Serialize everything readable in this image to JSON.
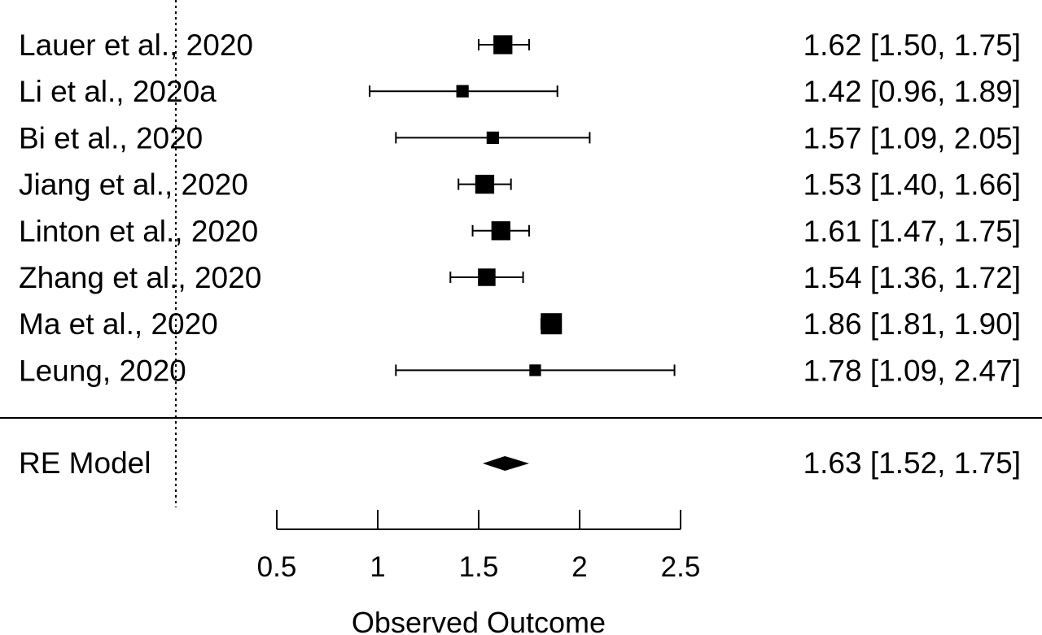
{
  "chart_data": {
    "type": "forest",
    "xlabel": "Observed Outcome",
    "xticks": [
      0.5,
      1,
      1.5,
      2,
      2.5
    ],
    "xtick_labels": [
      "0.5",
      "1",
      "1.5",
      "2",
      "2.5"
    ],
    "xlim": [
      0.5,
      2.5
    ],
    "reference_line": 0,
    "studies": [
      {
        "label": "Lauer et al., 2020",
        "estimate": 1.62,
        "lower": 1.5,
        "upper": 1.75,
        "ci_text": "1.62 [1.50, 1.75]",
        "weight": 0.85
      },
      {
        "label": "Li et al., 2020a",
        "estimate": 1.42,
        "lower": 0.96,
        "upper": 1.89,
        "ci_text": "1.42 [0.96, 1.89]",
        "weight": 0.4
      },
      {
        "label": "Bi et al., 2020",
        "estimate": 1.57,
        "lower": 1.09,
        "upper": 2.05,
        "ci_text": "1.57 [1.09, 2.05]",
        "weight": 0.4
      },
      {
        "label": "Jiang et al., 2020",
        "estimate": 1.53,
        "lower": 1.4,
        "upper": 1.66,
        "ci_text": "1.53 [1.40, 1.66]",
        "weight": 0.85
      },
      {
        "label": "Linton et al., 2020",
        "estimate": 1.61,
        "lower": 1.47,
        "upper": 1.75,
        "ci_text": "1.61 [1.47, 1.75]",
        "weight": 0.85
      },
      {
        "label": "Zhang et al., 2020",
        "estimate": 1.54,
        "lower": 1.36,
        "upper": 1.72,
        "ci_text": "1.54 [1.36, 1.72]",
        "weight": 0.75
      },
      {
        "label": "Ma et al., 2020",
        "estimate": 1.86,
        "lower": 1.81,
        "upper": 1.9,
        "ci_text": "1.86 [1.81, 1.90]",
        "weight": 1.0
      },
      {
        "label": "Leung, 2020",
        "estimate": 1.78,
        "lower": 1.09,
        "upper": 2.47,
        "ci_text": "1.78 [1.09, 2.47]",
        "weight": 0.35
      }
    ],
    "summary": {
      "label": "RE Model",
      "estimate": 1.63,
      "lower": 1.52,
      "upper": 1.75,
      "ci_text": "1.63 [1.52, 1.75]"
    }
  }
}
